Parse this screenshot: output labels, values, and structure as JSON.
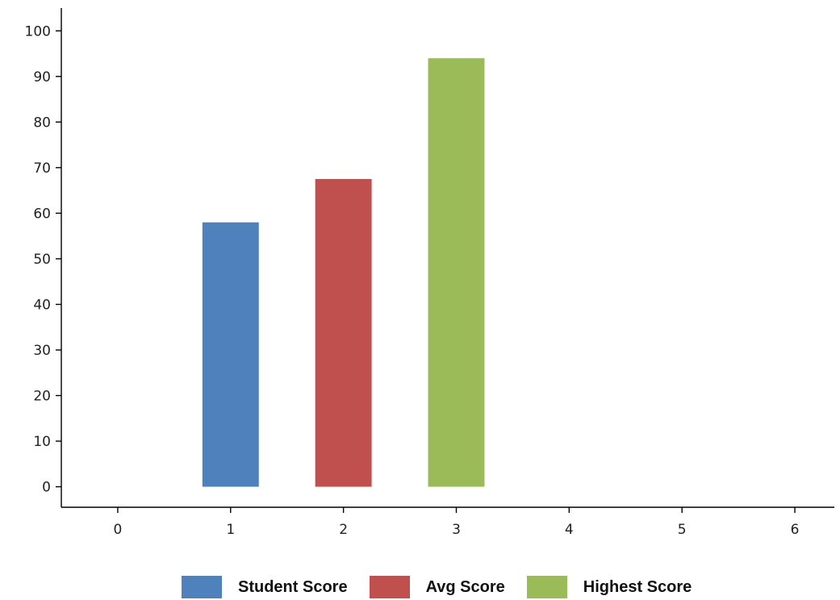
{
  "chart_data": {
    "type": "bar",
    "title": "",
    "xlabel": "",
    "ylabel": "",
    "xlim": [
      -0.5,
      6.35
    ],
    "ylim": [
      -4.5,
      105
    ],
    "x_ticks": [
      "0",
      "1",
      "2",
      "3",
      "4",
      "5",
      "6"
    ],
    "y_ticks": [
      "0",
      "10",
      "20",
      "30",
      "40",
      "50",
      "60",
      "70",
      "80",
      "90",
      "100"
    ],
    "grid": false,
    "legend_position": "bottom",
    "series": [
      {
        "name": "Student Score",
        "x": 1,
        "value": 58,
        "color": "#4f81bd"
      },
      {
        "name": "Avg Score",
        "x": 2,
        "value": 67.5,
        "color": "#c0504d"
      },
      {
        "name": "Highest Score",
        "x": 3,
        "value": 94,
        "color": "#9bbb59"
      }
    ]
  }
}
